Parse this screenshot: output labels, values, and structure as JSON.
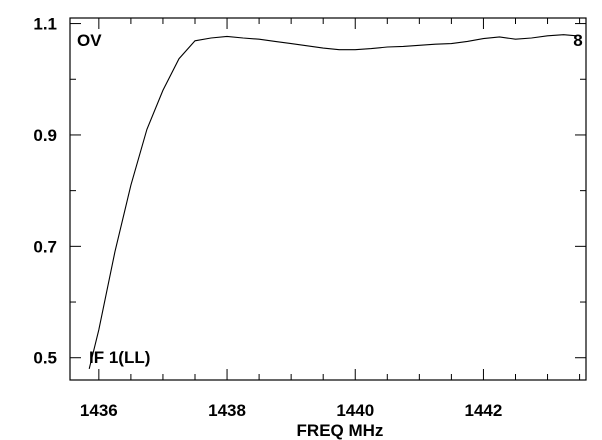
{
  "chart_data": {
    "type": "line",
    "title": "",
    "xlabel": "FREQ MHz",
    "ylabel": "",
    "xlim": [
      1435.55,
      1443.6
    ],
    "ylim": [
      0.46,
      1.11
    ],
    "x_major_ticks": [
      1436,
      1438,
      1440,
      1442
    ],
    "x_minor_step": 0.5,
    "y_major_ticks": [
      0.5,
      0.7,
      0.9,
      1.1
    ],
    "y_minor_step": 0.1,
    "x_tick_labels": [
      "1436",
      "1438",
      "1440",
      "1442"
    ],
    "y_tick_labels": [
      "0.5",
      "0.7",
      "0.9",
      "1.1"
    ],
    "annotations": {
      "top_left": "OV",
      "top_right": "8",
      "bottom_left": "IF 1(LL)"
    },
    "grid": false,
    "legend": "none",
    "line_color": "#000000",
    "series": [
      {
        "name": "",
        "x": [
          1435.85,
          1436.0,
          1436.25,
          1436.5,
          1436.75,
          1437.0,
          1437.25,
          1437.5,
          1437.75,
          1438.0,
          1438.25,
          1438.5,
          1438.75,
          1439.0,
          1439.25,
          1439.5,
          1439.75,
          1440.0,
          1440.25,
          1440.5,
          1440.75,
          1441.0,
          1441.25,
          1441.5,
          1441.75,
          1442.0,
          1442.25,
          1442.5,
          1442.75,
          1443.0,
          1443.25,
          1443.45
        ],
        "y": [
          0.48,
          0.55,
          0.69,
          0.81,
          0.91,
          0.98,
          1.037,
          1.069,
          1.074,
          1.077,
          1.074,
          1.072,
          1.068,
          1.064,
          1.06,
          1.056,
          1.053,
          1.053,
          1.055,
          1.058,
          1.059,
          1.061,
          1.063,
          1.064,
          1.068,
          1.073,
          1.076,
          1.072,
          1.074,
          1.078,
          1.08,
          1.078
        ]
      }
    ]
  }
}
